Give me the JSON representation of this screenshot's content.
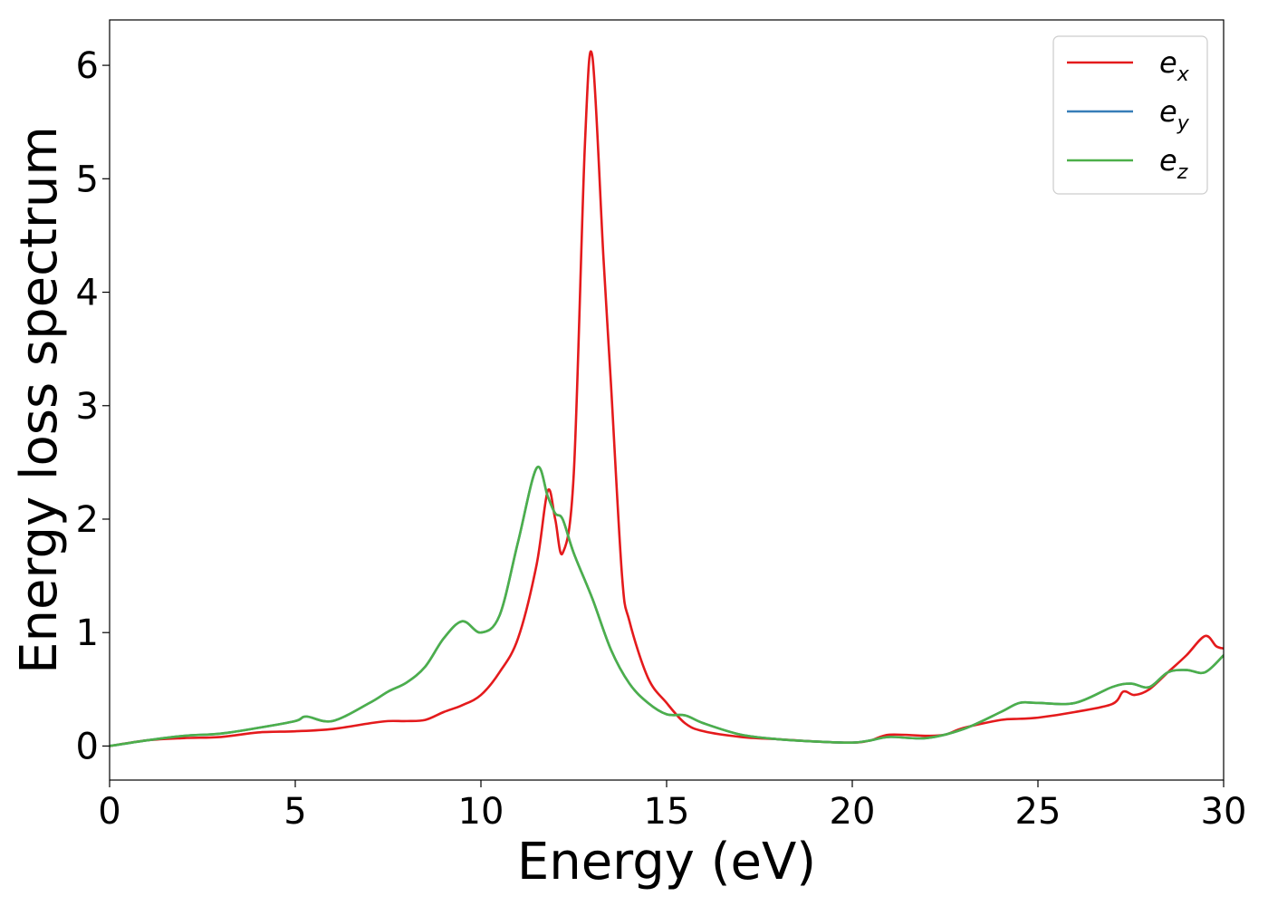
{
  "chart_data": {
    "type": "line",
    "title": "",
    "xlabel": "Energy (eV)",
    "ylabel": "Energy loss spectrum",
    "xlim": [
      0,
      30
    ],
    "ylim": [
      -0.3,
      6.4
    ],
    "xticks": [
      0,
      5,
      10,
      15,
      20,
      25,
      30
    ],
    "xtick_labels": [
      "0",
      "5",
      "10",
      "15",
      "20",
      "25",
      "30"
    ],
    "yticks": [
      0,
      1,
      2,
      3,
      4,
      5,
      6
    ],
    "ytick_labels": [
      "0",
      "1",
      "2",
      "3",
      "4",
      "5",
      "6"
    ],
    "grid": false,
    "legend_position": "top-right",
    "series": [
      {
        "name": "e",
        "subscript": "x",
        "color": "#e41a1c",
        "x": [
          0,
          1,
          2,
          3,
          4,
          5,
          6,
          7,
          7.5,
          8,
          8.5,
          9,
          9.5,
          10,
          10.5,
          11,
          11.5,
          11.8,
          12,
          12.2,
          12.5,
          12.8,
          13,
          13.3,
          13.5,
          13.8,
          14,
          14.5,
          15,
          15.5,
          16,
          17,
          18,
          19,
          20,
          20.5,
          21,
          22,
          22.5,
          23,
          24,
          24.5,
          25,
          26,
          27,
          27.3,
          27.6,
          28,
          28.5,
          29,
          29.5,
          29.8,
          30
        ],
        "y": [
          0,
          0.05,
          0.07,
          0.08,
          0.12,
          0.13,
          0.15,
          0.2,
          0.22,
          0.22,
          0.23,
          0.3,
          0.36,
          0.45,
          0.65,
          0.95,
          1.6,
          2.25,
          2.0,
          1.7,
          2.4,
          5.3,
          6.08,
          4.3,
          3.2,
          1.5,
          1.1,
          0.6,
          0.38,
          0.2,
          0.13,
          0.08,
          0.06,
          0.04,
          0.03,
          0.05,
          0.1,
          0.09,
          0.1,
          0.16,
          0.23,
          0.24,
          0.25,
          0.3,
          0.37,
          0.48,
          0.45,
          0.5,
          0.65,
          0.8,
          0.97,
          0.88,
          0.86
        ]
      },
      {
        "name": "e",
        "subscript": "y",
        "color": "#377eb8",
        "x": [
          0,
          1,
          2,
          3,
          4,
          5,
          5.3,
          6,
          7,
          7.5,
          8,
          8.5,
          9,
          9.5,
          10,
          10.5,
          11,
          11.5,
          11.8,
          12,
          12.2,
          12.5,
          13,
          13.5,
          14,
          14.5,
          15,
          15.5,
          16,
          17,
          18,
          19,
          20,
          20.5,
          21,
          22,
          23,
          24,
          24.5,
          25,
          26,
          27,
          27.5,
          28,
          28.5,
          29,
          29.5,
          30
        ],
        "y": [
          0,
          0.05,
          0.09,
          0.11,
          0.16,
          0.22,
          0.26,
          0.22,
          0.38,
          0.48,
          0.56,
          0.7,
          0.95,
          1.1,
          1.0,
          1.15,
          1.8,
          2.45,
          2.2,
          2.05,
          2.0,
          1.7,
          1.3,
          0.85,
          0.55,
          0.38,
          0.28,
          0.27,
          0.2,
          0.1,
          0.06,
          0.04,
          0.03,
          0.05,
          0.08,
          0.07,
          0.15,
          0.3,
          0.38,
          0.38,
          0.38,
          0.52,
          0.55,
          0.52,
          0.65,
          0.67,
          0.65,
          0.8
        ]
      },
      {
        "name": "e",
        "subscript": "z",
        "color": "#4daf4a",
        "x": [
          0,
          1,
          2,
          3,
          4,
          5,
          5.3,
          6,
          7,
          7.5,
          8,
          8.5,
          9,
          9.5,
          10,
          10.5,
          11,
          11.5,
          11.8,
          12,
          12.2,
          12.5,
          13,
          13.5,
          14,
          14.5,
          15,
          15.5,
          16,
          17,
          18,
          19,
          20,
          20.5,
          21,
          22,
          23,
          24,
          24.5,
          25,
          26,
          27,
          27.5,
          28,
          28.5,
          29,
          29.5,
          30
        ],
        "y": [
          0,
          0.05,
          0.09,
          0.11,
          0.16,
          0.22,
          0.26,
          0.22,
          0.38,
          0.48,
          0.56,
          0.7,
          0.95,
          1.1,
          1.0,
          1.15,
          1.8,
          2.45,
          2.2,
          2.05,
          2.0,
          1.7,
          1.3,
          0.85,
          0.55,
          0.38,
          0.28,
          0.27,
          0.2,
          0.1,
          0.06,
          0.04,
          0.03,
          0.05,
          0.08,
          0.07,
          0.15,
          0.3,
          0.38,
          0.38,
          0.38,
          0.52,
          0.55,
          0.52,
          0.65,
          0.67,
          0.65,
          0.8
        ]
      }
    ]
  }
}
